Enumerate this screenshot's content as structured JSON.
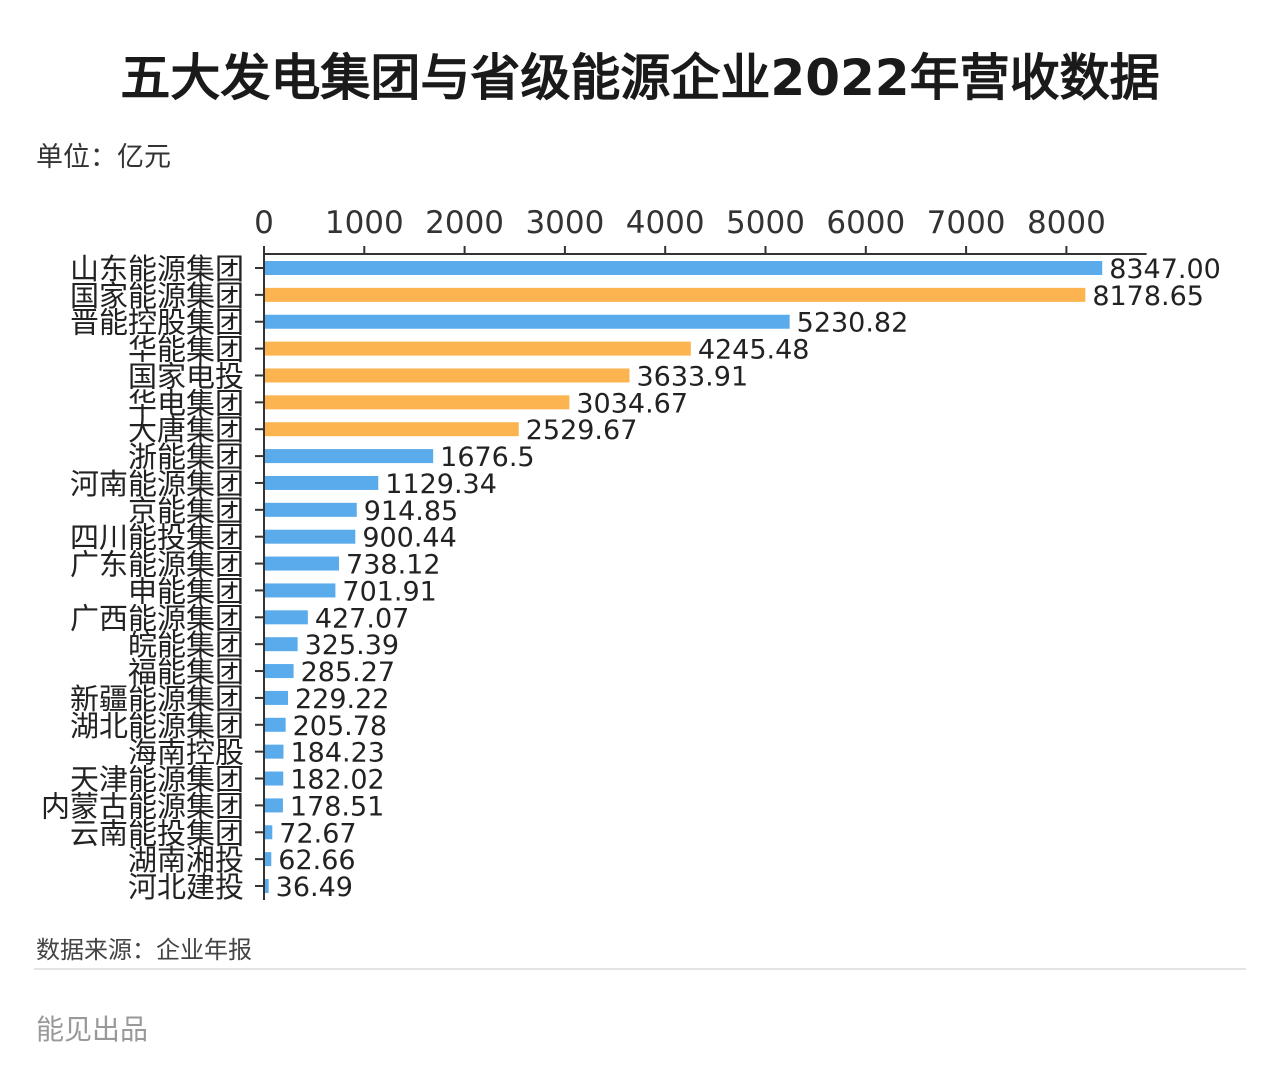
{
  "chart_data": {
    "type": "bar",
    "title": "五大发电集团与省级能源企业2022年营收数据",
    "unit": "单位：亿元",
    "source": "数据来源：企业年报",
    "brand": "能见出品",
    "xlim": [
      0,
      8800
    ],
    "xticks": [
      0,
      1000,
      2000,
      3000,
      4000,
      5000,
      6000,
      7000,
      8000
    ],
    "categories": [
      "山东能源集团",
      "国家能源集团",
      "晋能控股集团",
      "华能集团",
      "国家电投",
      "华电集团",
      "大唐集团",
      "浙能集团",
      "河南能源集团",
      "京能集团",
      "四川能投集团",
      "广东能源集团",
      "申能集团",
      "广西能源集团",
      "皖能集团",
      "福能集团",
      "新疆能源集团",
      "湖北能源集团",
      "海南控股",
      "天津能源集团",
      "内蒙古能源集团",
      "云南能投集团",
      "湖南湘投",
      "河北建投"
    ],
    "values": [
      8347.0,
      8178.65,
      5230.82,
      4245.48,
      3633.91,
      3034.67,
      2529.67,
      1676.5,
      1129.34,
      914.85,
      900.44,
      738.12,
      701.91,
      427.07,
      325.39,
      285.27,
      229.22,
      205.78,
      184.23,
      182.02,
      178.51,
      72.67,
      62.66,
      36.49
    ],
    "labels": [
      "8347.00",
      "8178.65",
      "5230.82",
      "4245.48",
      "3633.91",
      "3034.67",
      "2529.67",
      "1676.5",
      "1129.34",
      "914.85",
      "900.44",
      "738.12",
      "701.91",
      "427.07",
      "325.39",
      "285.27",
      "229.22",
      "205.78",
      "184.23",
      "182.02",
      "178.51",
      "72.67",
      "62.66",
      "36.49"
    ],
    "groups": [
      "provincial",
      "central",
      "provincial",
      "central",
      "central",
      "central",
      "central",
      "provincial",
      "provincial",
      "provincial",
      "provincial",
      "provincial",
      "provincial",
      "provincial",
      "provincial",
      "provincial",
      "provincial",
      "provincial",
      "provincial",
      "provincial",
      "provincial",
      "provincial",
      "provincial",
      "provincial"
    ],
    "colors": {
      "central": "#fbb450",
      "provincial": "#5aabec"
    }
  }
}
